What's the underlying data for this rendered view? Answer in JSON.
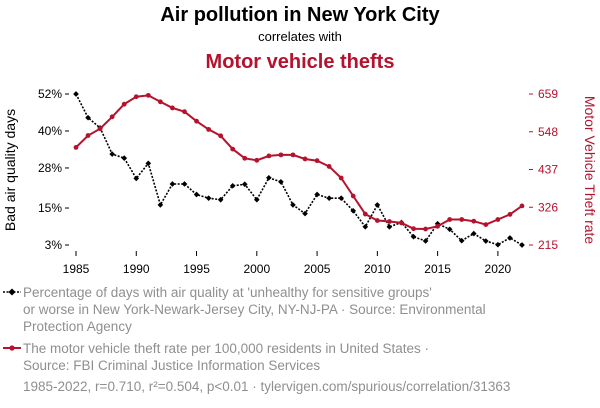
{
  "chart_data": {
    "type": "line",
    "title": "Air pollution in New York City",
    "subtitle": "correlates with",
    "title2": "Motor vehicle thefts",
    "ylabel_left": "Bad air quality days",
    "ylabel_right": "Motor Vehicle Theft rate",
    "x": [
      1985,
      1986,
      1987,
      1988,
      1989,
      1990,
      1991,
      1992,
      1993,
      1994,
      1995,
      1996,
      1997,
      1998,
      1999,
      2000,
      2001,
      2002,
      2003,
      2004,
      2005,
      2006,
      2007,
      2008,
      2009,
      2010,
      2011,
      2012,
      2013,
      2014,
      2015,
      2016,
      2017,
      2018,
      2019,
      2020,
      2021,
      2022
    ],
    "x_ticks": [
      1985,
      1990,
      1995,
      2000,
      2005,
      2010,
      2015,
      2020
    ],
    "left_ticks": [
      {
        "value": 3,
        "label": "3%"
      },
      {
        "value": 15,
        "label": "15%"
      },
      {
        "value": 28,
        "label": "28%"
      },
      {
        "value": 40,
        "label": "40%"
      },
      {
        "value": 52,
        "label": "52%"
      }
    ],
    "right_ticks": [
      {
        "value": 215,
        "label": "215"
      },
      {
        "value": 326,
        "label": "326"
      },
      {
        "value": 437,
        "label": "437"
      },
      {
        "value": 548,
        "label": "548"
      },
      {
        "value": 659,
        "label": "659"
      }
    ],
    "left_range": [
      3,
      52
    ],
    "right_range": [
      215,
      659
    ],
    "series": [
      {
        "name": "Percentage of days with air quality at 'unhealthy for sensitive groups' or worse in New York-Newark-Jersey City, NY-NJ-PA",
        "axis": "left",
        "color": "#000000",
        "style": "dotted",
        "marker": "diamond",
        "values": [
          52,
          44.3,
          41,
          32.5,
          31.2,
          24.6,
          29.5,
          16,
          22.8,
          22.8,
          19.4,
          18.2,
          17.7,
          22.2,
          22.7,
          17.7,
          24.8,
          23.5,
          16,
          13.2,
          19.4,
          18.2,
          18.2,
          14.1,
          8.9,
          16,
          8.9,
          10.3,
          5.7,
          4.3,
          9.9,
          8.1,
          4.4,
          6.7,
          4.3,
          3.1,
          5.3,
          3
        ]
      },
      {
        "name": "The motor vehicle theft rate per 100,000 residents in United States",
        "axis": "right",
        "color": "#b5122e",
        "style": "solid",
        "marker": "circle",
        "values": [
          502,
          537,
          557,
          592,
          629,
          651,
          655,
          636,
          618,
          607,
          579,
          555,
          536,
          497,
          470,
          464,
          477,
          480,
          480,
          468,
          463,
          446,
          412,
          359,
          306,
          287,
          284,
          280,
          263,
          262,
          270,
          290,
          290,
          285,
          275,
          290,
          305,
          330
        ]
      }
    ],
    "legend": [
      {
        "lines": [
          "Percentage of days with air quality at 'unhealthy for sensitive groups'",
          "or worse in New York-Newark-Jersey City, NY-NJ-PA · Source: Environmental",
          "Protection Agency"
        ]
      },
      {
        "lines": [
          "The motor vehicle theft rate per 100,000 residents in United States ·",
          "Source: FBI Criminal Justice Information Services"
        ]
      }
    ],
    "footer": "1985-2022, r=0.710, r²=0.504, p<0.01 · tylervigen.com/spurious/correlation/31363",
    "grid": false,
    "legend_position": "bottom"
  }
}
